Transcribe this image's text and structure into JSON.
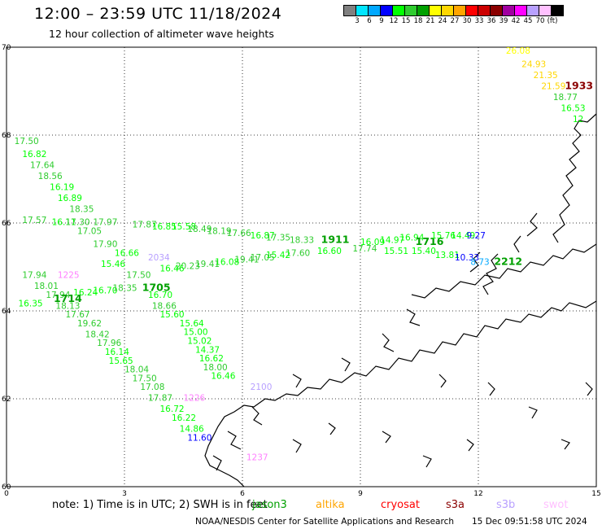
{
  "header": {
    "title": "12:00 – 23:59 UTC 11/18/2024",
    "subtitle": "12 hour collection of altimeter wave heights"
  },
  "legend": {
    "colors": [
      "#808080",
      "#00e5ff",
      "#00a8ff",
      "#0000ff",
      "#00ff00",
      "#2ecc2e",
      "#00a000",
      "#ffff00",
      "#ffd700",
      "#ffa500",
      "#ff0000",
      "#cc0000",
      "#8b0000",
      "#a000a0",
      "#ff00ff",
      "#b8a0ff",
      "#ffc0ff",
      "#000000"
    ],
    "labels": [
      "3",
      "6",
      "9",
      "12",
      "15",
      "18",
      "21",
      "24",
      "27",
      "30",
      "33",
      "36",
      "39",
      "42",
      "45",
      "70",
      "(ft)"
    ]
  },
  "axes": {
    "x_ticks": [
      "0",
      "3",
      "6",
      "9",
      "12",
      "15"
    ],
    "y_ticks": [
      "60",
      "62",
      "64",
      "66",
      "68",
      "70"
    ],
    "x_range": [
      0,
      15
    ],
    "y_range": [
      60,
      70
    ],
    "grid": "dotted"
  },
  "chart_data": {
    "type": "scatter",
    "unit": "ft",
    "observations": [
      {
        "t": "17.50",
        "lon": 0.2,
        "lat": 67.8,
        "c": "#2ecc2e"
      },
      {
        "t": "16.82",
        "lon": 0.4,
        "lat": 67.5,
        "c": "#00ff00"
      },
      {
        "t": "17.64",
        "lon": 0.6,
        "lat": 67.25,
        "c": "#2ecc2e"
      },
      {
        "t": "18.56",
        "lon": 0.8,
        "lat": 67.0,
        "c": "#2ecc2e"
      },
      {
        "t": "16.19",
        "lon": 1.1,
        "lat": 66.75,
        "c": "#00ff00"
      },
      {
        "t": "16.89",
        "lon": 1.3,
        "lat": 66.5,
        "c": "#00ff00"
      },
      {
        "t": "18.35",
        "lon": 1.6,
        "lat": 66.25,
        "c": "#2ecc2e"
      },
      {
        "t": "17.57",
        "lon": 0.4,
        "lat": 66.0,
        "c": "#2ecc2e"
      },
      {
        "t": "16.11",
        "lon": 1.15,
        "lat": 65.95,
        "c": "#00ff00"
      },
      {
        "t": "17.30",
        "lon": 1.5,
        "lat": 65.95,
        "c": "#2ecc2e"
      },
      {
        "t": "17.05",
        "lon": 1.8,
        "lat": 65.75,
        "c": "#2ecc2e"
      },
      {
        "t": "17.97",
        "lon": 2.2,
        "lat": 65.95,
        "c": "#2ecc2e"
      },
      {
        "t": "17.90",
        "lon": 2.2,
        "lat": 65.45,
        "c": "#2ecc2e"
      },
      {
        "t": "17.87",
        "lon": 3.2,
        "lat": 65.9,
        "c": "#2ecc2e"
      },
      {
        "t": "16.85",
        "lon": 3.7,
        "lat": 65.85,
        "c": "#00ff00"
      },
      {
        "t": "15.58",
        "lon": 4.2,
        "lat": 65.85,
        "c": "#00ff00"
      },
      {
        "t": "18.49",
        "lon": 4.6,
        "lat": 65.8,
        "c": "#2ecc2e"
      },
      {
        "t": "18.19",
        "lon": 5.1,
        "lat": 65.75,
        "c": "#2ecc2e"
      },
      {
        "t": "17.66",
        "lon": 5.6,
        "lat": 65.7,
        "c": "#2ecc2e"
      },
      {
        "t": "16.87",
        "lon": 6.2,
        "lat": 65.65,
        "c": "#00ff00"
      },
      {
        "t": "17.35",
        "lon": 6.6,
        "lat": 65.6,
        "c": "#2ecc2e"
      },
      {
        "t": "18.33",
        "lon": 7.2,
        "lat": 65.55,
        "c": "#2ecc2e"
      },
      {
        "t": "1911",
        "lon": 8.0,
        "lat": 65.55,
        "c": "#00a000",
        "bold": true
      },
      {
        "t": "16.09",
        "lon": 9.0,
        "lat": 65.5,
        "c": "#00ff00"
      },
      {
        "t": "14.97",
        "lon": 9.5,
        "lat": 65.55,
        "c": "#00ff00"
      },
      {
        "t": "16.94",
        "lon": 10.0,
        "lat": 65.6,
        "c": "#00ff00"
      },
      {
        "t": "1716",
        "lon": 10.4,
        "lat": 65.5,
        "c": "#00a000",
        "bold": true
      },
      {
        "t": "15.76",
        "lon": 10.8,
        "lat": 65.65,
        "c": "#00ff00"
      },
      {
        "t": "14.49",
        "lon": 11.3,
        "lat": 65.65,
        "c": "#00ff00"
      },
      {
        "t": "9.27",
        "lon": 11.7,
        "lat": 65.65,
        "c": "#0000ff"
      },
      {
        "t": "15.40",
        "lon": 10.3,
        "lat": 65.3,
        "c": "#00ff00"
      },
      {
        "t": "15.51",
        "lon": 9.6,
        "lat": 65.3,
        "c": "#00ff00"
      },
      {
        "t": "17.74",
        "lon": 8.8,
        "lat": 65.35,
        "c": "#2ecc2e"
      },
      {
        "t": "16.60",
        "lon": 7.9,
        "lat": 65.3,
        "c": "#00ff00"
      },
      {
        "t": "17.60",
        "lon": 7.1,
        "lat": 65.25,
        "c": "#2ecc2e"
      },
      {
        "t": "15.42",
        "lon": 6.6,
        "lat": 65.2,
        "c": "#00ff00"
      },
      {
        "t": "17.05",
        "lon": 6.2,
        "lat": 65.15,
        "c": "#2ecc2e"
      },
      {
        "t": "13.81",
        "lon": 10.9,
        "lat": 65.2,
        "c": "#00ff00"
      },
      {
        "t": "10.33",
        "lon": 11.4,
        "lat": 65.15,
        "c": "#0000ff"
      },
      {
        "t": "8.73",
        "lon": 11.8,
        "lat": 65.05,
        "c": "#00a8ff"
      },
      {
        "t": "2212",
        "lon": 12.4,
        "lat": 65.05,
        "c": "#00a000",
        "bold": true
      },
      {
        "t": "19.41",
        "lon": 5.8,
        "lat": 65.1,
        "c": "#2ecc2e"
      },
      {
        "t": "16.08",
        "lon": 5.3,
        "lat": 65.05,
        "c": "#00ff00"
      },
      {
        "t": "19.41",
        "lon": 4.8,
        "lat": 65.0,
        "c": "#2ecc2e"
      },
      {
        "t": "20.23",
        "lon": 4.3,
        "lat": 64.95,
        "c": "#2ecc2e"
      },
      {
        "t": "16.46",
        "lon": 3.9,
        "lat": 64.9,
        "c": "#00ff00"
      },
      {
        "t": "16.66",
        "lon": 2.75,
        "lat": 65.25,
        "c": "#00ff00"
      },
      {
        "t": "15.46",
        "lon": 2.4,
        "lat": 65.0,
        "c": "#00ff00"
      },
      {
        "t": "2034",
        "lon": 3.6,
        "lat": 65.15,
        "c": "#b8a0ff"
      },
      {
        "t": "17.50",
        "lon": 3.05,
        "lat": 64.75,
        "c": "#2ecc2e"
      },
      {
        "t": "17.94",
        "lon": 0.4,
        "lat": 64.75,
        "c": "#2ecc2e"
      },
      {
        "t": "1225",
        "lon": 1.3,
        "lat": 64.75,
        "c": "#ff80ff"
      },
      {
        "t": "18.01",
        "lon": 0.7,
        "lat": 64.5,
        "c": "#2ecc2e"
      },
      {
        "t": "17.94",
        "lon": 1.0,
        "lat": 64.3,
        "c": "#2ecc2e"
      },
      {
        "t": "16.24",
        "lon": 1.7,
        "lat": 64.35,
        "c": "#00ff00"
      },
      {
        "t": "16.70",
        "lon": 2.2,
        "lat": 64.4,
        "c": "#00ff00"
      },
      {
        "t": "18.35",
        "lon": 2.7,
        "lat": 64.45,
        "c": "#2ecc2e"
      },
      {
        "t": "1705",
        "lon": 3.45,
        "lat": 64.45,
        "c": "#00a000",
        "bold": true
      },
      {
        "t": "16.70",
        "lon": 3.6,
        "lat": 64.3,
        "c": "#00ff00"
      },
      {
        "t": "16.35",
        "lon": 0.3,
        "lat": 64.1,
        "c": "#00ff00"
      },
      {
        "t": "1714",
        "lon": 1.2,
        "lat": 64.2,
        "c": "#00a000",
        "bold": true
      },
      {
        "t": "18.13",
        "lon": 1.25,
        "lat": 64.05,
        "c": "#2ecc2e"
      },
      {
        "t": "18.66",
        "lon": 3.7,
        "lat": 64.05,
        "c": "#2ecc2e"
      },
      {
        "t": "17.67",
        "lon": 1.5,
        "lat": 63.85,
        "c": "#2ecc2e"
      },
      {
        "t": "15.60",
        "lon": 3.9,
        "lat": 63.85,
        "c": "#00ff00"
      },
      {
        "t": "19.62",
        "lon": 1.8,
        "lat": 63.65,
        "c": "#2ecc2e"
      },
      {
        "t": "15.64",
        "lon": 4.4,
        "lat": 63.65,
        "c": "#00ff00"
      },
      {
        "t": "18.42",
        "lon": 2.0,
        "lat": 63.4,
        "c": "#2ecc2e"
      },
      {
        "t": "15.00",
        "lon": 4.5,
        "lat": 63.45,
        "c": "#00ff00"
      },
      {
        "t": "17.96",
        "lon": 2.3,
        "lat": 63.2,
        "c": "#2ecc2e"
      },
      {
        "t": "15.02",
        "lon": 4.6,
        "lat": 63.25,
        "c": "#00ff00"
      },
      {
        "t": "16.14",
        "lon": 2.5,
        "lat": 63.0,
        "c": "#00ff00"
      },
      {
        "t": "14.37",
        "lon": 4.8,
        "lat": 63.05,
        "c": "#00ff00"
      },
      {
        "t": "16.62",
        "lon": 4.9,
        "lat": 62.85,
        "c": "#00ff00"
      },
      {
        "t": "15.65",
        "lon": 2.6,
        "lat": 62.8,
        "c": "#00ff00"
      },
      {
        "t": "18.00",
        "lon": 5.0,
        "lat": 62.65,
        "c": "#2ecc2e"
      },
      {
        "t": "18.04",
        "lon": 3.0,
        "lat": 62.6,
        "c": "#2ecc2e"
      },
      {
        "t": "16.46",
        "lon": 5.2,
        "lat": 62.45,
        "c": "#00ff00"
      },
      {
        "t": "17.50",
        "lon": 3.2,
        "lat": 62.4,
        "c": "#2ecc2e"
      },
      {
        "t": "17.08",
        "lon": 3.4,
        "lat": 62.2,
        "c": "#2ecc2e"
      },
      {
        "t": "2100",
        "lon": 6.2,
        "lat": 62.2,
        "c": "#b8a0ff"
      },
      {
        "t": "17.87",
        "lon": 3.6,
        "lat": 61.95,
        "c": "#2ecc2e"
      },
      {
        "t": "1226",
        "lon": 4.5,
        "lat": 61.95,
        "c": "#ff80ff"
      },
      {
        "t": "16.72",
        "lon": 3.9,
        "lat": 61.7,
        "c": "#00ff00"
      },
      {
        "t": "16.22",
        "lon": 4.2,
        "lat": 61.5,
        "c": "#00ff00"
      },
      {
        "t": "14.86",
        "lon": 4.4,
        "lat": 61.25,
        "c": "#00ff00"
      },
      {
        "t": "11.60",
        "lon": 4.6,
        "lat": 61.05,
        "c": "#0000ff"
      },
      {
        "t": "1237",
        "lon": 6.1,
        "lat": 60.6,
        "c": "#ff80ff"
      },
      {
        "t": "26.08",
        "lon": 12.7,
        "lat": 69.85,
        "c": "#ffff00"
      },
      {
        "t": "24.93",
        "lon": 13.1,
        "lat": 69.55,
        "c": "#ffd700"
      },
      {
        "t": "21.35",
        "lon": 13.4,
        "lat": 69.3,
        "c": "#ffd700"
      },
      {
        "t": "21.59",
        "lon": 13.6,
        "lat": 69.05,
        "c": "#ffd700"
      },
      {
        "t": "1933",
        "lon": 14.2,
        "lat": 69.05,
        "c": "#8b0000",
        "bold": true
      },
      {
        "t": "18.77",
        "lon": 13.9,
        "lat": 68.8,
        "c": "#2ecc2e"
      },
      {
        "t": "16.53",
        "lon": 14.1,
        "lat": 68.55,
        "c": "#00ff00"
      },
      {
        "t": "12",
        "lon": 14.4,
        "lat": 68.3,
        "c": "#00ff00"
      }
    ]
  },
  "footer": {
    "note": "note:  1) Time is in UTC;  2) SWH is in feet",
    "satellites": [
      {
        "name": "jason3",
        "color": "#00a000"
      },
      {
        "name": "altika",
        "color": "#ffa500"
      },
      {
        "name": "cryosat",
        "color": "#ff0000"
      },
      {
        "name": "s3a",
        "color": "#8b0000"
      },
      {
        "name": "s3b",
        "color": "#b8a0ff"
      },
      {
        "name": "swot",
        "color": "#ffc0ff"
      }
    ],
    "credit": "NOAA/NESDIS Center for Satellite Applications and Research",
    "timestamp": "15 Dec 09:51:58 UTC 2024"
  }
}
